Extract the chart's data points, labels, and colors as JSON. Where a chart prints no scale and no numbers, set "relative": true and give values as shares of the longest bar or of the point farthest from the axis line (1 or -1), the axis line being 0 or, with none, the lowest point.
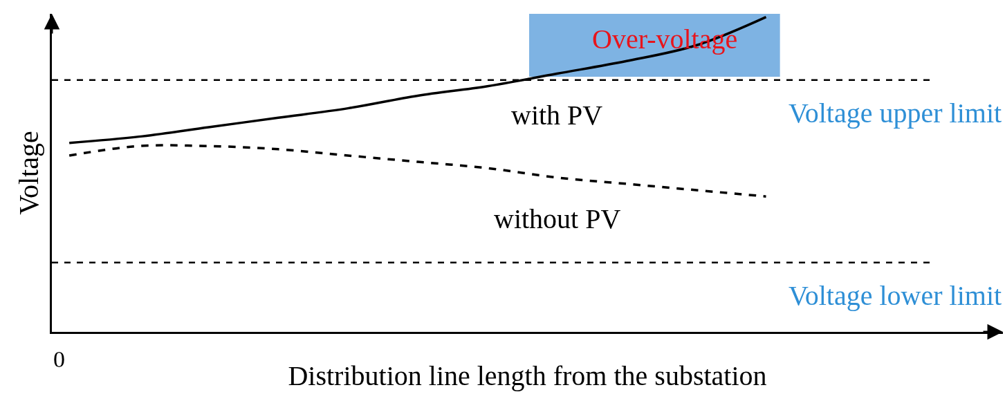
{
  "chart_data": {
    "type": "line",
    "relative": true,
    "xlabel": "Distribution line length from the substation",
    "ylabel": "Voltage",
    "categories": [
      null,
      null,
      null,
      null,
      null,
      null,
      null,
      null,
      null,
      null,
      null
    ],
    "series": [
      {
        "name": "with PV",
        "color": "#000000",
        "line_style": "solid",
        "values": [
          0.6,
          0.62,
          0.65,
          0.68,
          0.71,
          0.75,
          0.78,
          0.82,
          0.86,
          0.91,
          1
        ]
      },
      {
        "name": "without PV",
        "color": "#000000",
        "line_style": "dashed",
        "values": [
          0.56,
          0.59,
          0.59,
          0.58,
          0.56,
          0.54,
          0.52,
          0.49,
          0.47,
          0.45,
          0.43
        ]
      }
    ],
    "ref_lines": [
      {
        "axis": "y",
        "value": 0.8,
        "label": "Voltage upper limit",
        "color": "#000000",
        "line_style": "dashed"
      },
      {
        "axis": "y",
        "value": 0.22,
        "label": "Voltage lower limit",
        "color": "#000000",
        "line_style": "dashed"
      }
    ],
    "bands": [
      {
        "axis": "y",
        "from": 0.81,
        "to": 1.01,
        "label": "Over-voltage",
        "color": "#7eb3e3"
      }
    ],
    "annotations": [
      "0"
    ],
    "grid": false,
    "legend": false,
    "marker": "none"
  }
}
